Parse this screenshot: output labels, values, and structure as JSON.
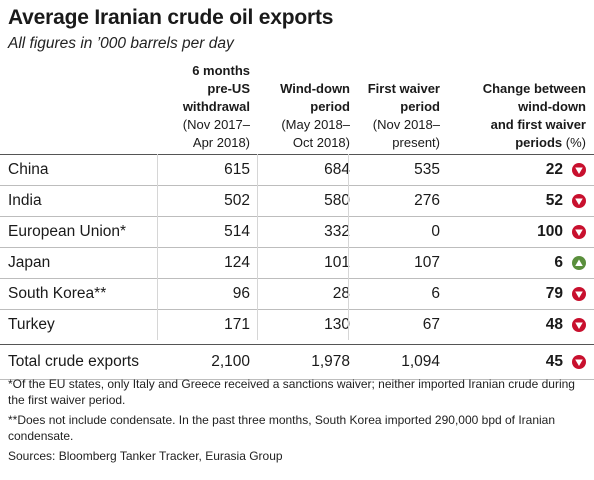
{
  "title": "Average Iranian crude oil exports",
  "subtitle": "All figures in ’000 barrels per day",
  "columns": [
    {
      "bold": [
        "6 months",
        "pre-US",
        "withdrawal"
      ],
      "normal": [
        "(Nov 2017–",
        "Apr 2018)"
      ]
    },
    {
      "bold": [
        "Wind-down",
        "period"
      ],
      "normal": [
        "(May 2018–",
        "Oct 2018)"
      ]
    },
    {
      "bold": [
        "First waiver",
        "period"
      ],
      "normal": [
        "(Nov 2018–",
        "present)"
      ]
    },
    {
      "bold": [
        "Change between",
        "wind-down",
        "and first waiver"
      ],
      "mixed": {
        "bold": "periods",
        "normal": " (%)"
      }
    }
  ],
  "chart_data": {
    "type": "table",
    "rows": [
      {
        "label": "China",
        "pre": "615",
        "wind": "684",
        "first": "535",
        "change": "22",
        "direction": "down"
      },
      {
        "label": "India",
        "pre": "502",
        "wind": "580",
        "first": "276",
        "change": "52",
        "direction": "down"
      },
      {
        "label": "European Union*",
        "pre": "514",
        "wind": "332",
        "first": "0",
        "change": "100",
        "direction": "down"
      },
      {
        "label": "Japan",
        "pre": "124",
        "wind": "101",
        "first": "107",
        "change": "6",
        "direction": "up"
      },
      {
        "label": "South Korea**",
        "pre": "96",
        "wind": "28",
        "first": "6",
        "change": "79",
        "direction": "down"
      },
      {
        "label": "Turkey",
        "pre": "171",
        "wind": "130",
        "first": "67",
        "change": "48",
        "direction": "down"
      }
    ],
    "total": {
      "label": "Total crude exports",
      "pre": "2,100",
      "wind": "1,978",
      "first": "1,094",
      "change": "45",
      "direction": "down"
    }
  },
  "colors": {
    "down": "#c8102e",
    "up": "#5a8f3c"
  },
  "footnotes": [
    "*Of the EU states, only Italy and Greece received a sanctions waiver; neither imported Iranian crude during the first waiver period.",
    "**Does not include condensate. In the past three months, South Korea imported 290,000 bpd of Iranian condensate.",
    "Sources: Bloomberg Tanker Tracker, Eurasia Group"
  ]
}
